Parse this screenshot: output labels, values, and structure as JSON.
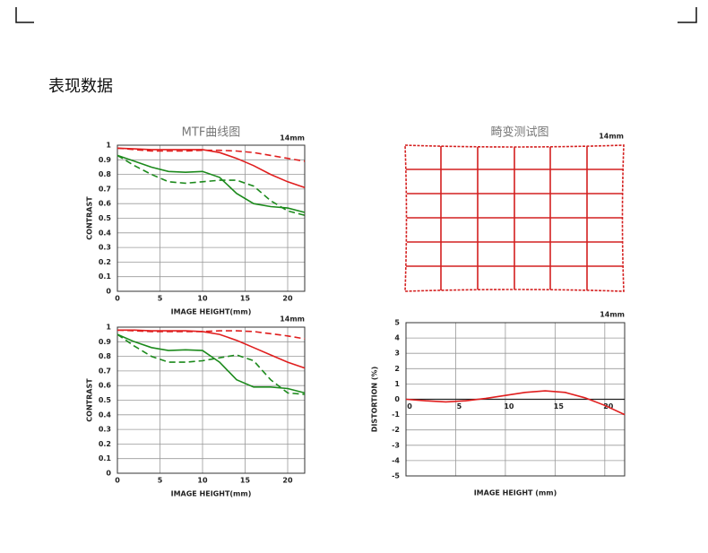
{
  "heading": "表现数据",
  "distortion_grid": {
    "title": "畸变测试图",
    "annotation": "14mm"
  },
  "chart_data": [
    {
      "type": "line",
      "title": "MTF曲线图",
      "annotation": "14mm",
      "xlabel": "IMAGE HEIGHT(mm)",
      "ylabel": "CONTRAST",
      "x": [
        0,
        2,
        4,
        6,
        8,
        10,
        12,
        14,
        16,
        18,
        20,
        22
      ],
      "xlim": [
        0,
        22
      ],
      "ylim": [
        0,
        1
      ],
      "xticks": [
        0,
        5,
        10,
        15,
        20
      ],
      "yticks": [
        0,
        0.1,
        0.2,
        0.3,
        0.4,
        0.5,
        0.6,
        0.7,
        0.8,
        0.9,
        1
      ],
      "grid": true,
      "series": [
        {
          "color": "#e01e1e",
          "dash": false,
          "values": [
            0.98,
            0.975,
            0.97,
            0.97,
            0.97,
            0.97,
            0.95,
            0.91,
            0.86,
            0.8,
            0.75,
            0.71
          ]
        },
        {
          "color": "#e01e1e",
          "dash": true,
          "values": [
            0.98,
            0.97,
            0.96,
            0.96,
            0.96,
            0.965,
            0.965,
            0.96,
            0.95,
            0.93,
            0.91,
            0.89
          ]
        },
        {
          "color": "#1c8a1c",
          "dash": false,
          "values": [
            0.93,
            0.89,
            0.85,
            0.82,
            0.815,
            0.82,
            0.78,
            0.67,
            0.6,
            0.58,
            0.57,
            0.54
          ]
        },
        {
          "color": "#1c8a1c",
          "dash": true,
          "values": [
            0.93,
            0.86,
            0.8,
            0.75,
            0.74,
            0.75,
            0.76,
            0.76,
            0.72,
            0.62,
            0.55,
            0.52
          ]
        }
      ]
    },
    {
      "type": "line",
      "annotation": "14mm",
      "xlabel": "IMAGE HEIGHT(mm)",
      "ylabel": "CONTRAST",
      "x": [
        0,
        2,
        4,
        6,
        8,
        10,
        12,
        14,
        16,
        18,
        20,
        22
      ],
      "xlim": [
        0,
        22
      ],
      "ylim": [
        0,
        1
      ],
      "xticks": [
        0,
        5,
        10,
        15,
        20
      ],
      "yticks": [
        0,
        0.1,
        0.2,
        0.3,
        0.4,
        0.5,
        0.6,
        0.7,
        0.8,
        0.9,
        1
      ],
      "grid": true,
      "series": [
        {
          "color": "#e01e1e",
          "dash": false,
          "values": [
            0.98,
            0.98,
            0.975,
            0.975,
            0.975,
            0.97,
            0.95,
            0.91,
            0.86,
            0.81,
            0.76,
            0.72
          ]
        },
        {
          "color": "#e01e1e",
          "dash": true,
          "values": [
            0.98,
            0.975,
            0.97,
            0.97,
            0.97,
            0.97,
            0.975,
            0.975,
            0.97,
            0.955,
            0.94,
            0.92
          ]
        },
        {
          "color": "#1c8a1c",
          "dash": false,
          "values": [
            0.95,
            0.9,
            0.86,
            0.84,
            0.845,
            0.84,
            0.76,
            0.64,
            0.59,
            0.59,
            0.58,
            0.55
          ]
        },
        {
          "color": "#1c8a1c",
          "dash": true,
          "values": [
            0.95,
            0.87,
            0.8,
            0.76,
            0.76,
            0.77,
            0.79,
            0.81,
            0.77,
            0.64,
            0.55,
            0.54
          ]
        }
      ]
    },
    {
      "type": "line",
      "annotation": "14mm",
      "xlabel": "IMAGE HEIGHT (mm)",
      "ylabel": "DISTORTION (%)",
      "x": [
        0,
        2,
        4,
        6,
        8,
        10,
        12,
        14,
        16,
        18,
        20,
        22
      ],
      "xlim": [
        0,
        22
      ],
      "ylim": [
        -5,
        5
      ],
      "xticks": [
        0,
        5,
        10,
        15,
        20
      ],
      "yticks": [
        -5,
        -4,
        -3,
        -2,
        -1,
        0,
        1,
        2,
        3,
        4,
        5
      ],
      "grid": true,
      "series": [
        {
          "color": "#e01e1e",
          "dash": false,
          "values": [
            0,
            -0.1,
            -0.17,
            -0.1,
            0.05,
            0.25,
            0.45,
            0.55,
            0.45,
            0.1,
            -0.4,
            -1.0
          ]
        }
      ]
    }
  ]
}
